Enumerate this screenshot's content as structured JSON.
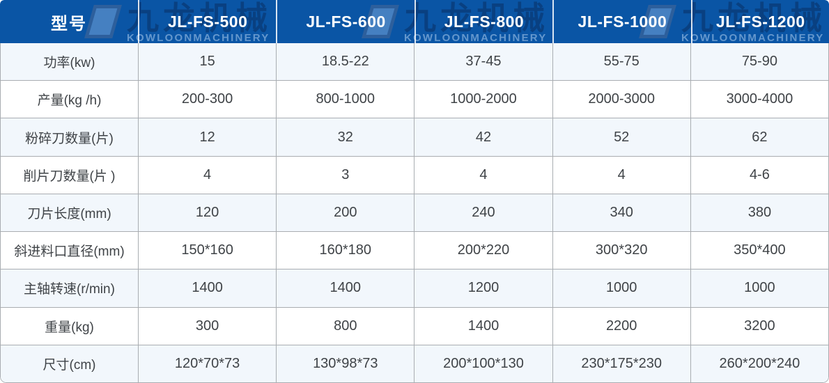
{
  "watermark": {
    "cn": "九龙机械",
    "en": "KOWLOONMACHINERY"
  },
  "colors": {
    "header_bg": "#0a55a5",
    "header_text": "#ffffff",
    "row_alt_bg": "#f2f7fc",
    "row_bg": "#ffffff",
    "border": "#a9adb1",
    "cell_text": "#3f4347"
  },
  "chart_data": {
    "type": "table",
    "columns": [
      "型号",
      "JL-FS-500",
      "JL-FS-600",
      "JL-FS-800",
      "JL-FS-1000",
      "JL-FS-1200"
    ],
    "rows": [
      [
        "功率(kw)",
        "15",
        "18.5-22",
        "37-45",
        "55-75",
        "75-90"
      ],
      [
        "产量(kg /h)",
        "200-300",
        "800-1000",
        "1000-2000",
        "2000-3000",
        "3000-4000"
      ],
      [
        "粉碎刀数量(片)",
        "12",
        "32",
        "42",
        "52",
        "62"
      ],
      [
        "削片刀数量(片 )",
        "4",
        "3",
        "4",
        "4",
        "4-6"
      ],
      [
        "刀片长度(mm)",
        "120",
        "200",
        "240",
        "340",
        "380"
      ],
      [
        "斜进料口直径(mm)",
        "150*160",
        "160*180",
        "200*220",
        "300*320",
        "350*400"
      ],
      [
        "主轴转速(r/min)",
        "1400",
        "1400",
        "1200",
        "1000",
        "1000"
      ],
      [
        "重量(kg)",
        "300",
        "800",
        "1400",
        "2200",
        "3200"
      ],
      [
        "尺寸(cm)",
        "120*70*73",
        "130*98*73",
        "200*100*130",
        "230*175*230",
        "260*200*240"
      ]
    ]
  }
}
